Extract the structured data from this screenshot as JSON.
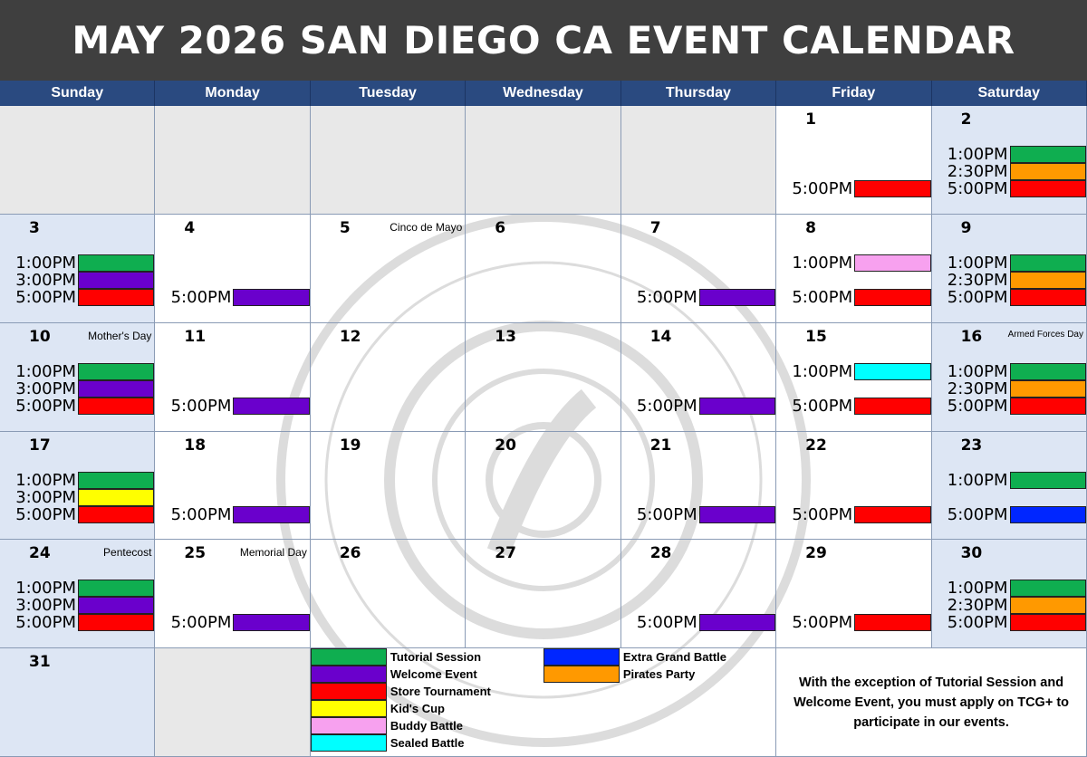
{
  "title": "MAY 2026 SAN DIEGO CA EVENT CALENDAR",
  "day_headers": [
    "Sunday",
    "Monday",
    "Tuesday",
    "Wednesday",
    "Thursday",
    "Friday",
    "Saturday"
  ],
  "colors": {
    "tutorial": "#0fae50",
    "welcome": "#6a00cc",
    "store": "#ff0000",
    "kids": "#ffff00",
    "buddy": "#f7a1ef",
    "sealed": "#00ffff",
    "extra": "#0026ff",
    "pirates": "#ff9900",
    "header_bar": "#3f3f3f",
    "day_header_bg": "#2a4a80"
  },
  "legend": [
    {
      "label": "Tutorial Session",
      "color": "#0fae50"
    },
    {
      "label": "Welcome Event",
      "color": "#6a00cc"
    },
    {
      "label": "Store Tournament",
      "color": "#ff0000"
    },
    {
      "label": "Kid's Cup",
      "color": "#ffff00"
    },
    {
      "label": "Buddy Battle",
      "color": "#f7a1ef"
    },
    {
      "label": "Sealed Battle",
      "color": "#00ffff"
    },
    {
      "label": "Extra Grand Battle",
      "color": "#0026ff"
    },
    {
      "label": "Pirates Party",
      "color": "#ff9900"
    }
  ],
  "note": "With the exception of Tutorial Session and Welcome Event, you must apply on TCG+ to participate in our events.",
  "days": [
    {
      "day": "1",
      "col": 5,
      "row": 0,
      "events": [
        {
          "time": "5:00PM",
          "type": "store"
        }
      ]
    },
    {
      "day": "2",
      "col": 6,
      "row": 0,
      "events": [
        {
          "time": "1:00PM",
          "type": "tutorial"
        },
        {
          "time": "2:30PM",
          "type": "pirates"
        },
        {
          "time": "5:00PM",
          "type": "store"
        }
      ]
    },
    {
      "day": "3",
      "col": 0,
      "row": 1,
      "events": [
        {
          "time": "1:00PM",
          "type": "tutorial"
        },
        {
          "time": "3:00PM",
          "type": "welcome"
        },
        {
          "time": "5:00PM",
          "type": "store"
        }
      ]
    },
    {
      "day": "4",
      "col": 1,
      "row": 1,
      "events": [
        {
          "time": "5:00PM",
          "type": "welcome"
        }
      ]
    },
    {
      "day": "5",
      "col": 2,
      "row": 1,
      "holiday": "Cinco de Mayo",
      "events": []
    },
    {
      "day": "6",
      "col": 3,
      "row": 1,
      "events": []
    },
    {
      "day": "7",
      "col": 4,
      "row": 1,
      "events": [
        {
          "time": "5:00PM",
          "type": "welcome"
        }
      ]
    },
    {
      "day": "8",
      "col": 5,
      "row": 1,
      "events": [
        {
          "time": "1:00PM",
          "type": "buddy"
        },
        {
          "time": "5:00PM",
          "type": "store"
        }
      ]
    },
    {
      "day": "9",
      "col": 6,
      "row": 1,
      "events": [
        {
          "time": "1:00PM",
          "type": "tutorial"
        },
        {
          "time": "2:30PM",
          "type": "pirates"
        },
        {
          "time": "5:00PM",
          "type": "store"
        }
      ]
    },
    {
      "day": "10",
      "col": 0,
      "row": 2,
      "holiday": "Mother's Day",
      "events": [
        {
          "time": "1:00PM",
          "type": "tutorial"
        },
        {
          "time": "3:00PM",
          "type": "welcome"
        },
        {
          "time": "5:00PM",
          "type": "store"
        }
      ]
    },
    {
      "day": "11",
      "col": 1,
      "row": 2,
      "events": [
        {
          "time": "5:00PM",
          "type": "welcome"
        }
      ]
    },
    {
      "day": "12",
      "col": 2,
      "row": 2,
      "events": []
    },
    {
      "day": "13",
      "col": 3,
      "row": 2,
      "events": []
    },
    {
      "day": "14",
      "col": 4,
      "row": 2,
      "events": [
        {
          "time": "5:00PM",
          "type": "welcome"
        }
      ]
    },
    {
      "day": "15",
      "col": 5,
      "row": 2,
      "events": [
        {
          "time": "1:00PM",
          "type": "sealed"
        },
        {
          "time": "5:00PM",
          "type": "store"
        }
      ]
    },
    {
      "day": "16",
      "col": 6,
      "row": 2,
      "holiday": "Armed Forces Day",
      "events": [
        {
          "time": "1:00PM",
          "type": "tutorial"
        },
        {
          "time": "2:30PM",
          "type": "pirates"
        },
        {
          "time": "5:00PM",
          "type": "store"
        }
      ]
    },
    {
      "day": "17",
      "col": 0,
      "row": 3,
      "events": [
        {
          "time": "1:00PM",
          "type": "tutorial"
        },
        {
          "time": "3:00PM",
          "type": "kids"
        },
        {
          "time": "5:00PM",
          "type": "store"
        }
      ]
    },
    {
      "day": "18",
      "col": 1,
      "row": 3,
      "events": [
        {
          "time": "5:00PM",
          "type": "welcome"
        }
      ]
    },
    {
      "day": "19",
      "col": 2,
      "row": 3,
      "events": []
    },
    {
      "day": "20",
      "col": 3,
      "row": 3,
      "events": []
    },
    {
      "day": "21",
      "col": 4,
      "row": 3,
      "events": [
        {
          "time": "5:00PM",
          "type": "welcome"
        }
      ]
    },
    {
      "day": "22",
      "col": 5,
      "row": 3,
      "events": [
        {
          "time": "5:00PM",
          "type": "store"
        }
      ]
    },
    {
      "day": "23",
      "col": 6,
      "row": 3,
      "events": [
        {
          "time": "1:00PM",
          "type": "tutorial"
        },
        {
          "time": "5:00PM",
          "type": "extra"
        }
      ]
    },
    {
      "day": "24",
      "col": 0,
      "row": 4,
      "holiday": "Pentecost",
      "events": [
        {
          "time": "1:00PM",
          "type": "tutorial"
        },
        {
          "time": "3:00PM",
          "type": "welcome"
        },
        {
          "time": "5:00PM",
          "type": "store"
        }
      ]
    },
    {
      "day": "25",
      "col": 1,
      "row": 4,
      "holiday": "Memorial Day",
      "events": [
        {
          "time": "5:00PM",
          "type": "welcome"
        }
      ]
    },
    {
      "day": "26",
      "col": 2,
      "row": 4,
      "events": []
    },
    {
      "day": "27",
      "col": 3,
      "row": 4,
      "events": []
    },
    {
      "day": "28",
      "col": 4,
      "row": 4,
      "events": [
        {
          "time": "5:00PM",
          "type": "welcome"
        }
      ]
    },
    {
      "day": "29",
      "col": 5,
      "row": 4,
      "events": [
        {
          "time": "5:00PM",
          "type": "store"
        }
      ]
    },
    {
      "day": "30",
      "col": 6,
      "row": 4,
      "events": [
        {
          "time": "1:00PM",
          "type": "tutorial"
        },
        {
          "time": "2:30PM",
          "type": "pirates"
        },
        {
          "time": "5:00PM",
          "type": "store"
        }
      ]
    },
    {
      "day": "31",
      "col": 0,
      "row": 5,
      "events": []
    }
  ]
}
